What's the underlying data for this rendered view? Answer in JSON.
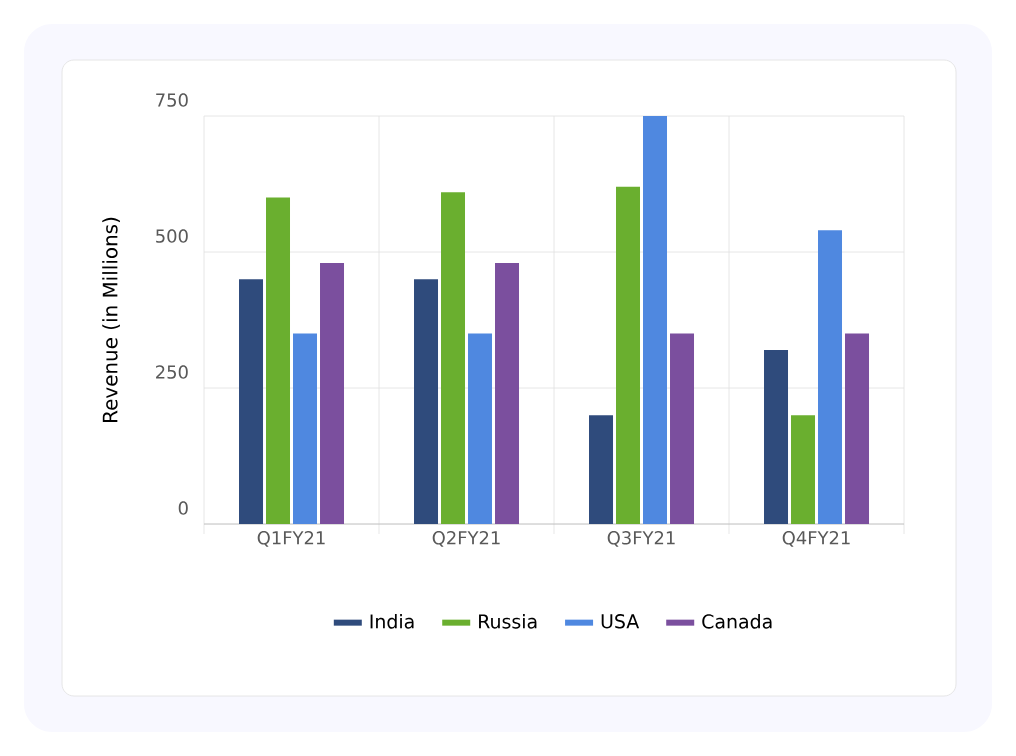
{
  "chart_data": {
    "type": "bar",
    "ylabel": "Revenue (in Millions)",
    "categories": [
      "Q1FY21",
      "Q2FY21",
      "Q3FY21",
      "Q4FY21"
    ],
    "series": [
      {
        "name": "India",
        "color": "#2f4b7c",
        "values": [
          450,
          450,
          200,
          320
        ]
      },
      {
        "name": "Russia",
        "color": "#6aaf2f",
        "values": [
          600,
          610,
          620,
          200
        ]
      },
      {
        "name": "USA",
        "color": "#4f88e0",
        "values": [
          350,
          350,
          750,
          540
        ]
      },
      {
        "name": "Canada",
        "color": "#7b4f9e",
        "values": [
          480,
          480,
          350,
          350
        ]
      }
    ],
    "ylim": [
      0,
      750
    ],
    "yticks": [
      0,
      250,
      500,
      750
    ],
    "grid": true,
    "legend": "bottom"
  }
}
